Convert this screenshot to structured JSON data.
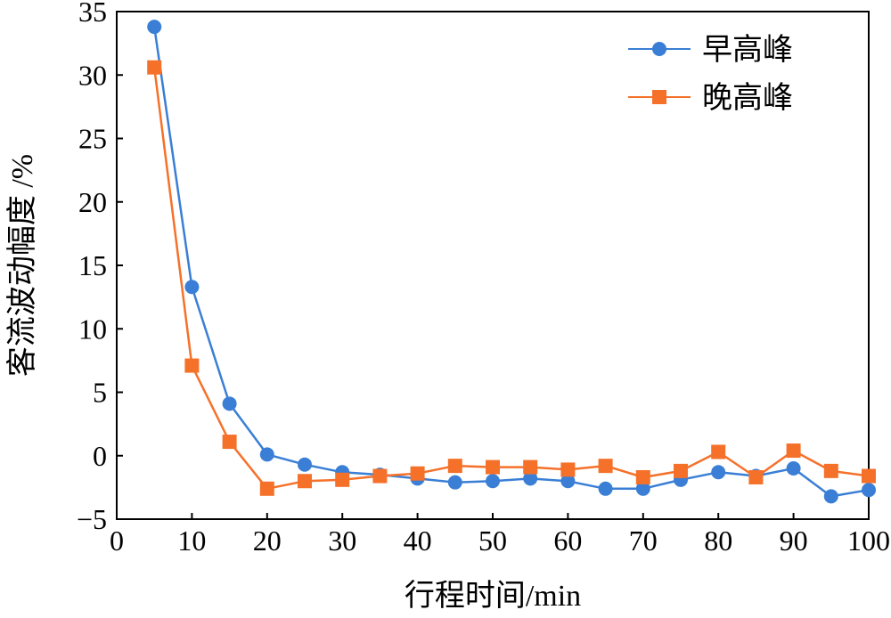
{
  "chart_data": {
    "type": "line",
    "xlabel": "行程时间/min",
    "ylabel": "客流波动幅度 /%",
    "xlim": [
      0,
      100
    ],
    "ylim": [
      -5,
      35
    ],
    "xticks": [
      0,
      10,
      20,
      30,
      40,
      50,
      60,
      70,
      80,
      90,
      100
    ],
    "yticks": [
      -5,
      0,
      5,
      10,
      15,
      20,
      25,
      30,
      35
    ],
    "xtick_labels": [
      "0",
      "10",
      "20",
      "30",
      "40",
      "50",
      "60",
      "70",
      "80",
      "90",
      "100"
    ],
    "ytick_labels": [
      "−5",
      "0",
      "5",
      "10",
      "15",
      "20",
      "25",
      "30",
      "35"
    ],
    "grid": false,
    "legend_position": "top-right",
    "x": [
      5,
      10,
      15,
      20,
      25,
      30,
      35,
      40,
      45,
      50,
      55,
      60,
      65,
      70,
      75,
      80,
      85,
      90,
      95,
      100
    ],
    "series": [
      {
        "name": "早高峰",
        "color": "#3a7fd5",
        "marker": "circle",
        "values": [
          33.8,
          13.3,
          4.1,
          0.1,
          -0.7,
          -1.3,
          -1.5,
          -1.8,
          -2.1,
          -2.0,
          -1.8,
          -2.0,
          -2.6,
          -2.6,
          -1.9,
          -1.3,
          -1.6,
          -1.0,
          -3.2,
          -2.7
        ]
      },
      {
        "name": "晚高峰",
        "color": "#f5712a",
        "marker": "square",
        "values": [
          30.6,
          7.1,
          1.1,
          -2.6,
          -2.0,
          -1.9,
          -1.6,
          -1.4,
          -0.8,
          -0.9,
          -0.9,
          -1.1,
          -0.8,
          -1.7,
          -1.2,
          0.3,
          -1.7,
          0.4,
          -1.2,
          -1.6
        ]
      }
    ]
  }
}
